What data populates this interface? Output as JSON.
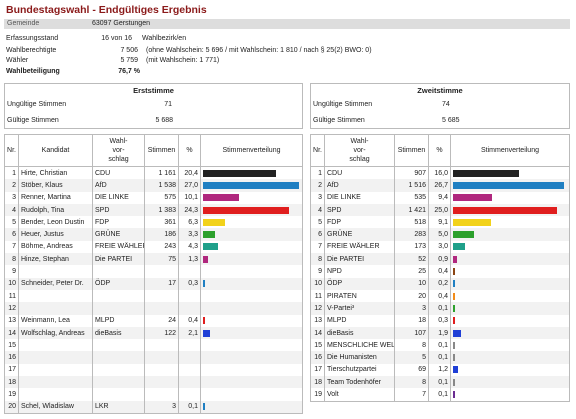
{
  "title": "Bundestagswahl - Endgültiges Ergebnis",
  "gemeinde": {
    "label": "Gemeinde",
    "value": "63097  Gerstungen"
  },
  "info": {
    "erfassung_label": "Erfassungsstand",
    "erfassung_value": "16 von 16",
    "erfassung_note": "Wahlbezirk/en",
    "berechtigte_label": "Wahlberechtigte",
    "berechtigte_value": "7 506",
    "berechtigte_note": "(ohne Wahlschein: 5 696 / mit Wahlschein: 1 810 / nach § 25(2) BWO: 0)",
    "waehler_label": "Wähler",
    "waehler_value": "5 759",
    "waehler_note": "(mit Wahlschein: 1 771)",
    "beteiligung_label": "Wahlbeteiligung",
    "beteiligung_value": "76,7 %"
  },
  "left": {
    "heading": "Erststimme",
    "ungueltig_label": "Ungültige Stimmen",
    "ungueltig_value": "71",
    "gueltig_label": "Gültige Stimmen",
    "gueltig_value": "5 688",
    "col_nr": "Nr.",
    "col_kandidat": "Kandidat",
    "col_vorschlag": "Wahl-\nvor-\nschlag",
    "col_stimmen": "Stimmen",
    "col_pct": "%",
    "col_vert": "Stimmenverteilung",
    "rows": [
      {
        "nr": "1",
        "name": "Hirte, Christian",
        "party": "CDU",
        "votes": "1 161",
        "pct": "20,4",
        "share": 20.4,
        "color": "#222222"
      },
      {
        "nr": "2",
        "name": "Stöber, Klaus",
        "party": "AfD",
        "votes": "1 538",
        "pct": "27,0",
        "share": 27.0,
        "color": "#1f7fc2"
      },
      {
        "nr": "3",
        "name": "Renner, Martina",
        "party": "DIE LINKE",
        "votes": "575",
        "pct": "10,1",
        "share": 10.1,
        "color": "#b0277e"
      },
      {
        "nr": "4",
        "name": "Rudolph, Tina",
        "party": "SPD",
        "votes": "1 383",
        "pct": "24,3",
        "share": 24.3,
        "color": "#e01e1e"
      },
      {
        "nr": "5",
        "name": "Bender, Leon Dustin",
        "party": "FDP",
        "votes": "361",
        "pct": "6,3",
        "share": 6.3,
        "color": "#f2d21a"
      },
      {
        "nr": "6",
        "name": "Heuer, Justus",
        "party": "GRÜNE",
        "votes": "186",
        "pct": "3,3",
        "share": 3.3,
        "color": "#2ca02c"
      },
      {
        "nr": "7",
        "name": "Böhme, Andreas",
        "party": "FREIE WÄHLER",
        "votes": "243",
        "pct": "4,3",
        "share": 4.3,
        "color": "#1fa08a"
      },
      {
        "nr": "8",
        "name": "Hinze, Stephan",
        "party": "Die PARTEI",
        "votes": "75",
        "pct": "1,3",
        "share": 1.3,
        "color": "#b0277e"
      },
      {
        "nr": "9",
        "name": "",
        "party": "",
        "votes": "",
        "pct": "",
        "share": 0,
        "color": ""
      },
      {
        "nr": "10",
        "name": "Schneider, Peter Dr.",
        "party": "ÖDP",
        "votes": "17",
        "pct": "0,3",
        "share": 0.3,
        "color": "#1f7fc2"
      },
      {
        "nr": "11",
        "name": "",
        "party": "",
        "votes": "",
        "pct": "",
        "share": 0,
        "color": ""
      },
      {
        "nr": "12",
        "name": "",
        "party": "",
        "votes": "",
        "pct": "",
        "share": 0,
        "color": ""
      },
      {
        "nr": "13",
        "name": "Weinmann, Lea",
        "party": "MLPD",
        "votes": "24",
        "pct": "0,4",
        "share": 0.4,
        "color": "#e01e1e"
      },
      {
        "nr": "14",
        "name": "Wolfschlag, Andreas",
        "party": "dieBasis",
        "votes": "122",
        "pct": "2,1",
        "share": 2.1,
        "color": "#1f3fd6"
      },
      {
        "nr": "15",
        "name": "",
        "party": "",
        "votes": "",
        "pct": "",
        "share": 0,
        "color": ""
      },
      {
        "nr": "16",
        "name": "",
        "party": "",
        "votes": "",
        "pct": "",
        "share": 0,
        "color": ""
      },
      {
        "nr": "17",
        "name": "",
        "party": "",
        "votes": "",
        "pct": "",
        "share": 0,
        "color": ""
      },
      {
        "nr": "18",
        "name": "",
        "party": "",
        "votes": "",
        "pct": "",
        "share": 0,
        "color": ""
      },
      {
        "nr": "19",
        "name": "",
        "party": "",
        "votes": "",
        "pct": "",
        "share": 0,
        "color": ""
      },
      {
        "nr": "20",
        "name": "Schel, Wladislaw",
        "party": "LKR",
        "votes": "3",
        "pct": "0,1",
        "share": 0.1,
        "color": "#1f7fc2"
      }
    ]
  },
  "right": {
    "heading": "Zweitstimme",
    "ungueltig_label": "Ungültige Stimmen",
    "ungueltig_value": "74",
    "gueltig_label": "Gültige Stimmen",
    "gueltig_value": "5 685",
    "col_nr": "Nr.",
    "col_vorschlag": "Wahl-\nvor-\nschlag",
    "col_stimmen": "Stimmen",
    "col_pct": "%",
    "col_vert": "Stimmenverteilung",
    "rows": [
      {
        "nr": "1",
        "party": "CDU",
        "votes": "907",
        "pct": "16,0",
        "share": 16.0,
        "color": "#222222"
      },
      {
        "nr": "2",
        "party": "AfD",
        "votes": "1 516",
        "pct": "26,7",
        "share": 26.7,
        "color": "#1f7fc2"
      },
      {
        "nr": "3",
        "party": "DIE LINKE",
        "votes": "535",
        "pct": "9,4",
        "share": 9.4,
        "color": "#b0277e"
      },
      {
        "nr": "4",
        "party": "SPD",
        "votes": "1 421",
        "pct": "25,0",
        "share": 25.0,
        "color": "#e01e1e"
      },
      {
        "nr": "5",
        "party": "FDP",
        "votes": "518",
        "pct": "9,1",
        "share": 9.1,
        "color": "#f2d21a"
      },
      {
        "nr": "6",
        "party": "GRÜNE",
        "votes": "283",
        "pct": "5,0",
        "share": 5.0,
        "color": "#2ca02c"
      },
      {
        "nr": "7",
        "party": "FREIE WÄHLER",
        "votes": "173",
        "pct": "3,0",
        "share": 3.0,
        "color": "#1fa08a"
      },
      {
        "nr": "8",
        "party": "Die PARTEI",
        "votes": "52",
        "pct": "0,9",
        "share": 0.9,
        "color": "#b0277e"
      },
      {
        "nr": "9",
        "party": "NPD",
        "votes": "25",
        "pct": "0,4",
        "share": 0.4,
        "color": "#8b4513"
      },
      {
        "nr": "10",
        "party": "ÖDP",
        "votes": "10",
        "pct": "0,2",
        "share": 0.2,
        "color": "#1f7fc2"
      },
      {
        "nr": "11",
        "party": "PIRATEN",
        "votes": "20",
        "pct": "0,4",
        "share": 0.4,
        "color": "#f28c1a"
      },
      {
        "nr": "12",
        "party": "V-Partei³",
        "votes": "3",
        "pct": "0,1",
        "share": 0.1,
        "color": "#2ca02c"
      },
      {
        "nr": "13",
        "party": "MLPD",
        "votes": "18",
        "pct": "0,3",
        "share": 0.3,
        "color": "#e01e1e"
      },
      {
        "nr": "14",
        "party": "dieBasis",
        "votes": "107",
        "pct": "1,9",
        "share": 1.9,
        "color": "#1f3fd6"
      },
      {
        "nr": "15",
        "party": "MENSCHLICHE WELT",
        "votes": "8",
        "pct": "0,1",
        "share": 0.1,
        "color": "#888888"
      },
      {
        "nr": "16",
        "party": "Die Humanisten",
        "votes": "5",
        "pct": "0,1",
        "share": 0.1,
        "color": "#888888"
      },
      {
        "nr": "17",
        "party": "Tierschutzpartei",
        "votes": "69",
        "pct": "1,2",
        "share": 1.2,
        "color": "#1f3fd6"
      },
      {
        "nr": "18",
        "party": "Team Todenhöfer",
        "votes": "8",
        "pct": "0,1",
        "share": 0.1,
        "color": "#888888"
      },
      {
        "nr": "19",
        "party": "Volt",
        "votes": "7",
        "pct": "0,1",
        "share": 0.1,
        "color": "#6a2c91"
      }
    ]
  }
}
